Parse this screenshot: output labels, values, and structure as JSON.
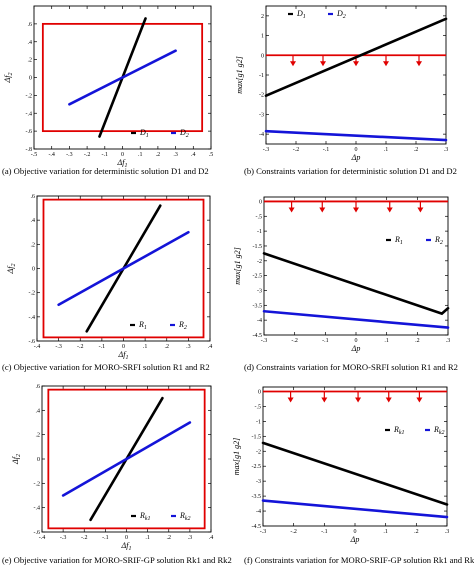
{
  "captions": [
    "(a) Objective variation for deterministic solution D1 and D2",
    "(b) Constraints variation for deterministic solution D1 and D2",
    "(c) Objective variation for MORO-SRFI solution R1 and R2",
    "(d) Constraints variation for MORO-SRFI solution R1 and R2",
    "(e) Objective variation for MORO-SRIF-GP solution Rk1 and Rk2",
    "(f) Constraints variation for MORO-SRIF-GP solution Rk1 and Rk2"
  ],
  "colors": {
    "black": "#000000",
    "blue": "#1414d8",
    "red": "#e00000"
  },
  "chart_data": [
    {
      "id": "a",
      "type": "line",
      "xlabel": "Δf1",
      "ylabel": "Δf2",
      "xlim": [
        -0.5,
        0.5
      ],
      "ylim": [
        -0.8,
        0.8
      ],
      "xticks": [
        -0.5,
        -0.4,
        -0.3,
        -0.2,
        -0.1,
        0,
        0.1,
        0.2,
        0.3,
        0.4,
        0.5
      ],
      "yticks": [
        -0.8,
        -0.6,
        -0.4,
        -0.2,
        0,
        0.2,
        0.4,
        0.6
      ],
      "box": {
        "x": [
          -0.45,
          0.45
        ],
        "y": [
          -0.6,
          0.6
        ]
      },
      "legend": {
        "position": "bottom-right",
        "entries": [
          "D1",
          "D2"
        ]
      },
      "series": [
        {
          "name": "D1",
          "color": "black",
          "x": [
            -0.13,
            0.13
          ],
          "y": [
            -0.66,
            0.66
          ]
        },
        {
          "name": "D2",
          "color": "blue",
          "x": [
            -0.3,
            0.3
          ],
          "y": [
            -0.3,
            0.3
          ]
        }
      ]
    },
    {
      "id": "b",
      "type": "line",
      "xlabel": "Δp",
      "ylabel": "max[g1 g2]",
      "xlim": [
        -0.3,
        0.3
      ],
      "ylim": [
        -4.5,
        2.5
      ],
      "xticks": [
        -0.3,
        -0.2,
        -0.1,
        0,
        0.1,
        0.2,
        0.3
      ],
      "yticks": [
        -4,
        -3,
        -2,
        -1,
        0,
        1,
        2
      ],
      "zero_line": 0,
      "arrows_x": [
        -0.21,
        -0.11,
        0,
        0.1,
        0.21
      ],
      "legend": {
        "position": "top-left",
        "entries": [
          "D1",
          "D2"
        ]
      },
      "series": [
        {
          "name": "D1",
          "color": "black",
          "x": [
            -0.3,
            0.3
          ],
          "y": [
            -2.05,
            1.85
          ]
        },
        {
          "name": "D2",
          "color": "blue",
          "x": [
            -0.3,
            0.3
          ],
          "y": [
            -3.85,
            -4.3
          ]
        }
      ]
    },
    {
      "id": "c",
      "type": "line",
      "xlabel": "Δf1",
      "ylabel": "Δf2",
      "xlim": [
        -0.4,
        0.4
      ],
      "ylim": [
        -0.6,
        0.6
      ],
      "xticks": [
        -0.4,
        -0.3,
        -0.2,
        -0.1,
        0,
        0.1,
        0.2,
        0.3,
        0.4
      ],
      "yticks": [
        -0.6,
        -0.4,
        -0.2,
        0,
        0.2,
        0.4,
        0.6
      ],
      "box": {
        "x": [
          -0.37,
          0.37
        ],
        "y": [
          -0.57,
          0.57
        ]
      },
      "legend": {
        "position": "bottom-right",
        "entries": [
          "R1",
          "R2"
        ]
      },
      "series": [
        {
          "name": "R1",
          "color": "black",
          "x": [
            -0.17,
            0.17
          ],
          "y": [
            -0.52,
            0.52
          ]
        },
        {
          "name": "R2",
          "color": "blue",
          "x": [
            -0.3,
            0.3
          ],
          "y": [
            -0.3,
            0.3
          ]
        }
      ]
    },
    {
      "id": "d",
      "type": "line",
      "xlabel": "Δp",
      "ylabel": "max[g1 g2]",
      "xlim": [
        -0.3,
        0.3
      ],
      "ylim": [
        -4.5,
        0.15
      ],
      "xticks": [
        -0.3,
        -0.2,
        -0.1,
        0,
        0.1,
        0.2,
        0.3
      ],
      "yticks": [
        -4.5,
        -4,
        -3.5,
        -3,
        -2.5,
        -2,
        -1.5,
        -1,
        -0.5,
        0
      ],
      "zero_line": 0,
      "arrows_x": [
        -0.21,
        -0.11,
        0,
        0.11,
        0.21
      ],
      "legend": {
        "position": "top-right",
        "entries": [
          "R1",
          "R2"
        ]
      },
      "series": [
        {
          "name": "R1",
          "color": "black",
          "x": [
            -0.3,
            0.28,
            0.3
          ],
          "y": [
            -1.75,
            -3.78,
            -3.6
          ]
        },
        {
          "name": "R2",
          "color": "blue",
          "x": [
            -0.3,
            0.3
          ],
          "y": [
            -3.7,
            -4.25
          ]
        }
      ]
    },
    {
      "id": "e",
      "type": "line",
      "xlabel": "Δf1",
      "ylabel": "Δf2",
      "xlim": [
        -0.4,
        0.4
      ],
      "ylim": [
        -0.6,
        0.6
      ],
      "xticks": [
        -0.4,
        -0.3,
        -0.2,
        -0.1,
        0,
        0.1,
        0.2,
        0.3,
        0.4
      ],
      "yticks": [
        -0.6,
        -0.4,
        -0.2,
        0,
        0.2,
        0.4,
        0.6
      ],
      "box": {
        "x": [
          -0.37,
          0.37
        ],
        "y": [
          -0.57,
          0.57
        ]
      },
      "legend": {
        "position": "bottom-right",
        "entries": [
          "Rk1",
          "Rk2"
        ]
      },
      "series": [
        {
          "name": "Rk1",
          "color": "black",
          "x": [
            -0.17,
            0.17
          ],
          "y": [
            -0.5,
            0.5
          ]
        },
        {
          "name": "Rk2",
          "color": "blue",
          "x": [
            -0.3,
            0.3
          ],
          "y": [
            -0.3,
            0.3
          ]
        }
      ]
    },
    {
      "id": "f",
      "type": "line",
      "xlabel": "Δp",
      "ylabel": "max[g1 g2]",
      "xlim": [
        -0.3,
        0.3
      ],
      "ylim": [
        -4.5,
        0.15
      ],
      "xticks": [
        -0.3,
        -0.2,
        -0.1,
        0,
        0.1,
        0.2,
        0.3
      ],
      "yticks": [
        -4.5,
        -4,
        -3.5,
        -3,
        -2.5,
        -2,
        -1.5,
        -1,
        -0.5,
        0
      ],
      "zero_line": 0,
      "arrows_x": [
        -0.21,
        -0.1,
        0.01,
        0.11,
        0.21
      ],
      "legend": {
        "position": "top-right",
        "entries": [
          "Rk1",
          "Rk2"
        ]
      },
      "series": [
        {
          "name": "Rk1",
          "color": "black",
          "x": [
            -0.3,
            0.3
          ],
          "y": [
            -1.72,
            -3.78
          ]
        },
        {
          "name": "Rk2",
          "color": "blue",
          "x": [
            -0.3,
            0.3
          ],
          "y": [
            -3.65,
            -4.2
          ]
        }
      ]
    }
  ]
}
